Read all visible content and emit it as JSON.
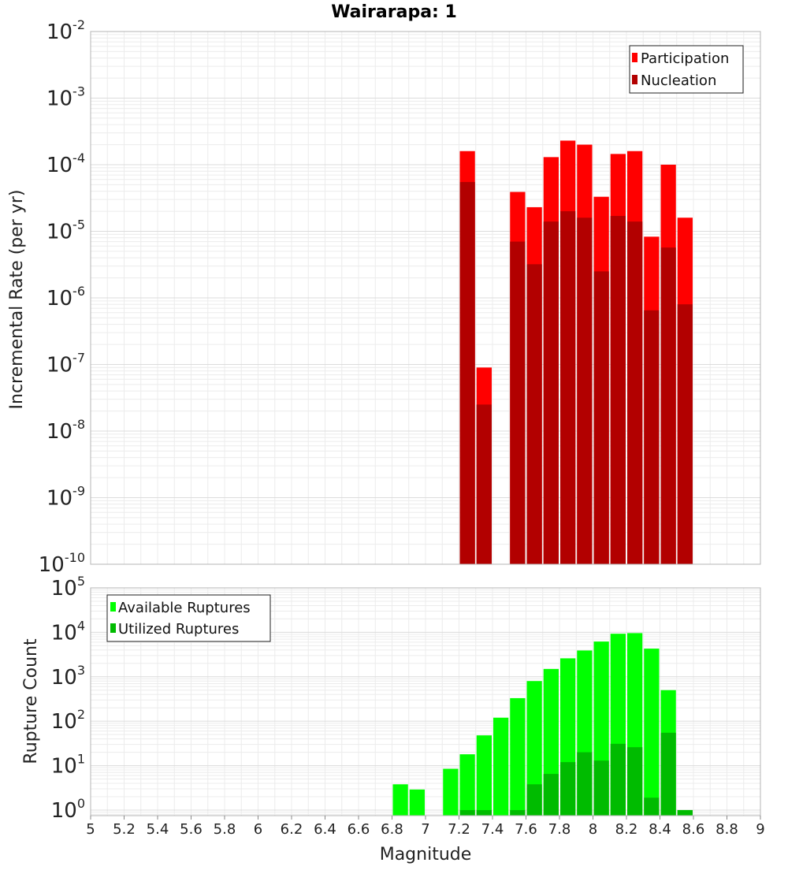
{
  "chart_data": [
    {
      "type": "bar",
      "title": "Wairarapa: 1",
      "ylabel": "Incremental Rate (per yr)",
      "xlabel": "",
      "y_scale": "log",
      "ylim": [
        1e-10,
        0.01
      ],
      "xlim": [
        5,
        9
      ],
      "grid": true,
      "legend_position": "top-right",
      "y_ticks": [
        {
          "base": "10",
          "exp": "-2",
          "value": 0.01
        },
        {
          "base": "10",
          "exp": "-3",
          "value": 0.001
        },
        {
          "base": "10",
          "exp": "-4",
          "value": 0.0001
        },
        {
          "base": "10",
          "exp": "-5",
          "value": 1e-05
        },
        {
          "base": "10",
          "exp": "-6",
          "value": 1e-06
        },
        {
          "base": "10",
          "exp": "-7",
          "value": 1e-07
        },
        {
          "base": "10",
          "exp": "-8",
          "value": 1e-08
        },
        {
          "base": "10",
          "exp": "-9",
          "value": 1e-09
        },
        {
          "base": "10",
          "exp": "-10",
          "value": 1e-10
        }
      ],
      "x": [
        7.25,
        7.35,
        7.55,
        7.65,
        7.75,
        7.85,
        7.95,
        8.05,
        8.15,
        8.25,
        8.35,
        8.45,
        8.55
      ],
      "series": [
        {
          "name": "Participation",
          "color": "#ff0000",
          "values": [
            0.00016,
            9e-08,
            3.9e-05,
            2.3e-05,
            0.00013,
            0.00023,
            0.0002,
            3.3e-05,
            0.000145,
            0.00016,
            8.3e-06,
            0.0001,
            1.6e-05
          ]
        },
        {
          "name": "Nucleation",
          "color": "#b20000",
          "values": [
            5.5e-05,
            2.5e-08,
            7e-06,
            3.2e-06,
            1.4e-05,
            2e-05,
            1.6e-05,
            2.5e-06,
            1.7e-05,
            1.4e-05,
            6.5e-07,
            5.7e-06,
            8e-07
          ]
        }
      ]
    },
    {
      "type": "bar",
      "title": "",
      "ylabel": "Rupture Count",
      "xlabel": "Magnitude",
      "y_scale": "log",
      "ylim": [
        0.75,
        100000
      ],
      "xlim": [
        5,
        9
      ],
      "grid": true,
      "legend_position": "top-left",
      "x_ticks": [
        "5",
        "5.2",
        "5.4",
        "5.6",
        "5.8",
        "6",
        "6.2",
        "6.4",
        "6.6",
        "6.8",
        "7",
        "7.2",
        "7.4",
        "7.6",
        "7.8",
        "8",
        "8.2",
        "8.4",
        "8.6",
        "8.8",
        "9"
      ],
      "y_ticks": [
        {
          "base": "10",
          "exp": "5",
          "value": 100000
        },
        {
          "base": "10",
          "exp": "4",
          "value": 10000
        },
        {
          "base": "10",
          "exp": "3",
          "value": 1000
        },
        {
          "base": "10",
          "exp": "2",
          "value": 100
        },
        {
          "base": "10",
          "exp": "1",
          "value": 10
        },
        {
          "base": "10",
          "exp": "0",
          "value": 1
        }
      ],
      "x": [
        6.85,
        6.95,
        7.15,
        7.25,
        7.35,
        7.45,
        7.55,
        7.65,
        7.75,
        7.85,
        7.95,
        8.05,
        8.15,
        8.25,
        8.35,
        8.45,
        8.55
      ],
      "series": [
        {
          "name": "Available Ruptures",
          "color": "#00ff00",
          "values": [
            3.8,
            2.9,
            8.5,
            18,
            48,
            120,
            330,
            800,
            1500,
            2600,
            3900,
            6200,
            9300,
            9600,
            4300,
            500,
            1
          ]
        },
        {
          "name": "Utilized Ruptures",
          "color": "#00bb00",
          "values": [
            null,
            null,
            null,
            1,
            1,
            null,
            1,
            3.8,
            6.5,
            12,
            20,
            13,
            31,
            26,
            1.9,
            55,
            1
          ]
        }
      ]
    }
  ]
}
